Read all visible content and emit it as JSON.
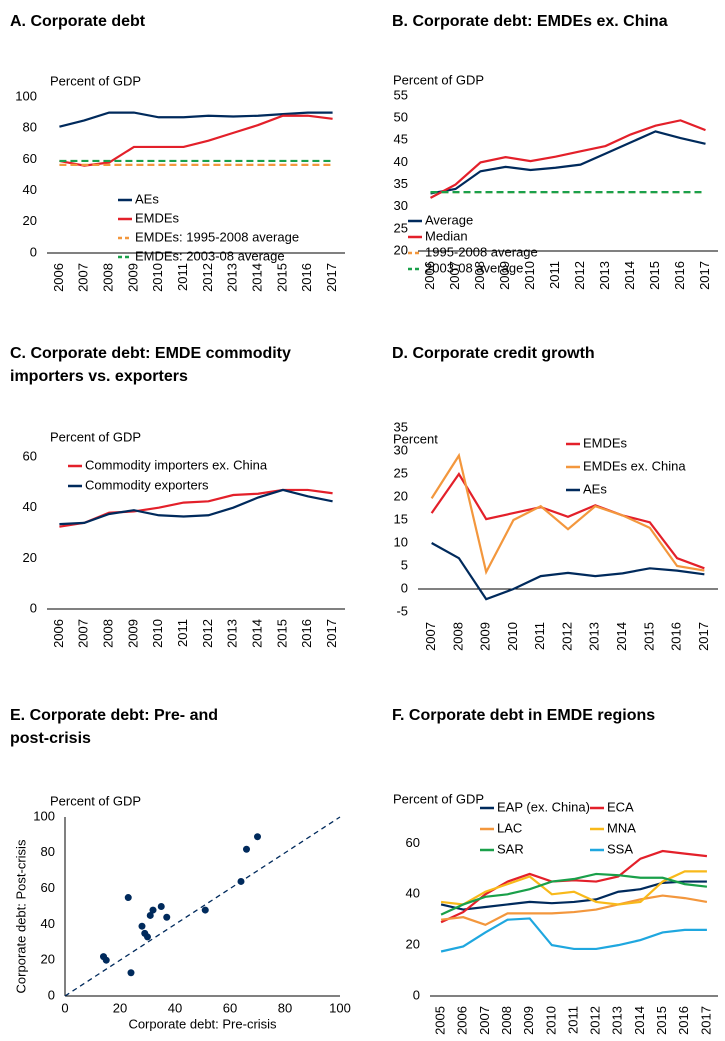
{
  "chart_data": [
    {
      "type": "line",
      "title": [
        "A. Corporate debt"
      ],
      "y_label": "Percent of GDP",
      "categories": [
        "2006",
        "2007",
        "2008",
        "2009",
        "2010",
        "2011",
        "2012",
        "2013",
        "2014",
        "2015",
        "2016",
        "2017"
      ],
      "ylim": [
        0,
        100
      ],
      "yticks": [
        0,
        20,
        40,
        60,
        80,
        100
      ],
      "series": [
        {
          "name": "AEs",
          "color": "#002a5c",
          "values": [
            81,
            85,
            90,
            90,
            87,
            87,
            88,
            87.5,
            88,
            89,
            90,
            90
          ]
        },
        {
          "name": "EMDEs",
          "color": "#e3202a",
          "values": [
            59,
            56,
            58,
            68,
            68,
            68,
            72,
            77,
            82,
            88,
            88,
            86
          ]
        },
        {
          "name": "EMDEs: 1995-2008 average",
          "color": "#f3973d",
          "dashed": true,
          "values": [
            56.5,
            56.5,
            56.5,
            56.5,
            56.5,
            56.5,
            56.5,
            56.5,
            56.5,
            56.5,
            56.5,
            56.5
          ]
        },
        {
          "name": "EMDEs: 2003-08 average",
          "color": "#1aa04a",
          "dashed": true,
          "values": [
            59,
            59,
            59,
            59,
            59,
            59,
            59,
            59,
            59,
            59,
            59,
            59
          ]
        }
      ]
    },
    {
      "type": "line",
      "title": [
        "B. Corporate debt: EMDEs ex. China"
      ],
      "y_label": "Percent of GDP",
      "categories": [
        "2006",
        "2007",
        "2008",
        "2009",
        "2010",
        "2011",
        "2012",
        "2013",
        "2014",
        "2015",
        "2016",
        "2017"
      ],
      "ylim": [
        20,
        55
      ],
      "yticks": [
        20,
        25,
        30,
        35,
        40,
        45,
        50,
        55
      ],
      "series": [
        {
          "name": "Average",
          "color": "#002a5c",
          "values": [
            33,
            34,
            38,
            39,
            38.3,
            38.8,
            39.5,
            42,
            44.5,
            47,
            45.5,
            44.2
          ]
        },
        {
          "name": "Median",
          "color": "#e3202a",
          "values": [
            32,
            35,
            40,
            41.2,
            40.3,
            41.3,
            42.5,
            43.7,
            46.3,
            48.3,
            49.5,
            47.3
          ]
        },
        {
          "name": "1995-2008 average",
          "color": "#f3973d",
          "dashed": true,
          "values": [
            33.3,
            33.3,
            33.3,
            33.3,
            33.3,
            33.3,
            33.3,
            33.3,
            33.3,
            33.3,
            33.3,
            33.3
          ]
        },
        {
          "name": "2003-08 average",
          "color": "#1aa04a",
          "dashed": true,
          "values": [
            33.3,
            33.3,
            33.3,
            33.3,
            33.3,
            33.3,
            33.3,
            33.3,
            33.3,
            33.3,
            33.3,
            33.3
          ]
        }
      ]
    },
    {
      "type": "line",
      "title": [
        "C. Corporate debt: EMDE commodity",
        "importers vs. exporters"
      ],
      "y_label": "Percent of GDP",
      "categories": [
        "2006",
        "2007",
        "2008",
        "2009",
        "2010",
        "2011",
        "2012",
        "2013",
        "2014",
        "2015",
        "2016",
        "2017"
      ],
      "ylim": [
        0,
        60
      ],
      "yticks": [
        0,
        20,
        40,
        60
      ],
      "series": [
        {
          "name": "Commodity importers ex. China",
          "color": "#e3202a",
          "values": [
            32.5,
            34,
            38,
            38.5,
            40,
            42,
            42.5,
            45,
            45.5,
            47,
            47,
            45.7
          ]
        },
        {
          "name": "Commodity exporters",
          "color": "#002a5c",
          "values": [
            33.5,
            34,
            37.5,
            39,
            37,
            36.5,
            37,
            40,
            44,
            47,
            44.5,
            42.5
          ]
        }
      ]
    },
    {
      "type": "line",
      "title": [
        "D. Corporate credit growth"
      ],
      "y_label": "Percent",
      "categories": [
        "2007",
        "2008",
        "2009",
        "2010",
        "2011",
        "2012",
        "2013",
        "2014",
        "2015",
        "2016",
        "2017"
      ],
      "ylim": [
        -5,
        35
      ],
      "yticks": [
        -5,
        0,
        5,
        10,
        15,
        20,
        25,
        30,
        35
      ],
      "series": [
        {
          "name": "EMDEs",
          "color": "#e3202a",
          "values": [
            16.5,
            25,
            15.2,
            16.5,
            17.8,
            15.7,
            18.2,
            16,
            14.5,
            6.7,
            4.5
          ]
        },
        {
          "name": "EMDEs ex. China",
          "color": "#f3973d",
          "values": [
            19.7,
            29,
            3.7,
            15,
            18,
            13,
            18,
            16,
            13.3,
            5,
            4
          ]
        },
        {
          "name": "AEs",
          "color": "#002a5c",
          "values": [
            10,
            6.7,
            -2.2,
            0,
            2.8,
            3.5,
            2.8,
            3.4,
            4.5,
            4,
            3.2
          ]
        }
      ]
    },
    {
      "type": "scatter",
      "title": [
        "E. Corporate debt: Pre- and",
        "post-crisis"
      ],
      "y_label": "Percent of GDP",
      "x_axis_label": "Corporate debt: Pre-crisis",
      "y_axis_label": "Corporate debt: Post-crisis",
      "xlim": [
        0,
        100
      ],
      "xticks": [
        0,
        20,
        40,
        60,
        80,
        100
      ],
      "ylim": [
        0,
        100
      ],
      "yticks": [
        0,
        20,
        40,
        60,
        80,
        100
      ],
      "color": "#002a5c",
      "x": [
        14,
        15,
        23,
        24,
        28,
        29,
        30,
        31,
        32,
        35,
        37,
        51,
        64,
        66,
        70
      ],
      "values": [
        22,
        20,
        55,
        13,
        39,
        35,
        33,
        45,
        48,
        50,
        44,
        48,
        64,
        82,
        89
      ]
    },
    {
      "type": "line",
      "title": [
        "F. Corporate debt in EMDE regions"
      ],
      "y_label": "Percent of GDP",
      "categories": [
        "2005",
        "2006",
        "2007",
        "2008",
        "2009",
        "2010",
        "2011",
        "2012",
        "2013",
        "2014",
        "2015",
        "2016",
        "2017"
      ],
      "ylim": [
        0,
        70
      ],
      "yticks": [
        0,
        20,
        40,
        60
      ],
      "series": [
        {
          "name": "EAP (ex. China)",
          "color": "#002a5c",
          "values": [
            36,
            34,
            35,
            36,
            37,
            36.5,
            37,
            38,
            41,
            42,
            44.5,
            45,
            45
          ]
        },
        {
          "name": "ECA",
          "color": "#e3202a",
          "values": [
            29,
            33,
            40,
            45,
            48,
            45,
            45.5,
            45,
            47,
            54,
            57,
            56,
            55
          ]
        },
        {
          "name": "LAC",
          "color": "#f3973d",
          "values": [
            30,
            31,
            28,
            32.5,
            32.5,
            32.5,
            33,
            34,
            36,
            38,
            39.5,
            38.5,
            37
          ]
        },
        {
          "name": "MNA",
          "color": "#f8b91a",
          "values": [
            37,
            36,
            41,
            44,
            47,
            40,
            41,
            37,
            36,
            37,
            45,
            49,
            49
          ]
        },
        {
          "name": "SAR",
          "color": "#1aa04a",
          "values": [
            32,
            36,
            39,
            40,
            42,
            45,
            46,
            48,
            47.5,
            46.5,
            46.5,
            44,
            43
          ]
        },
        {
          "name": "SSA",
          "color": "#1fa7df",
          "values": [
            17.5,
            19.5,
            25,
            30,
            30.5,
            20,
            18.5,
            18.5,
            20,
            22,
            25,
            26,
            26
          ]
        }
      ]
    }
  ]
}
